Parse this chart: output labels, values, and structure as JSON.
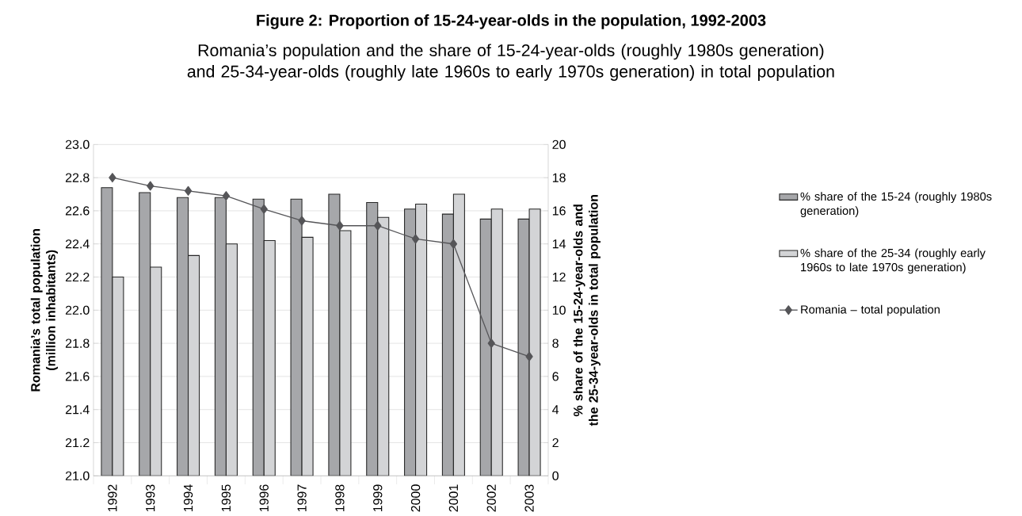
{
  "chart_data": {
    "type": "bar",
    "title": "Figure 2: Proportion of 15-24-year-olds in the population, 1992-2003",
    "subtitle": "Romania’s population and the share of 15-24-year-olds (roughly 1980s generation) and 25-34-year-olds (roughly late 1960s to early 1970s generation) in total population",
    "ylabel": "Romania’s total population (million inhabitants)",
    "y2label": "% share of the 15-24-year-olds and the 25-34-year-olds in total population",
    "categories": [
      "1992",
      "1993",
      "1994",
      "1995",
      "1996",
      "1997",
      "1998",
      "1999",
      "2000",
      "2001",
      "2002",
      "2003"
    ],
    "series": [
      {
        "name": "% share of the 15-24 (roughly 1980s generation)",
        "axis": "y2",
        "color": "#a6a7aa",
        "values": [
          17.4,
          17.1,
          16.8,
          16.8,
          16.7,
          16.7,
          17.0,
          16.5,
          16.1,
          15.8,
          15.5,
          15.5
        ]
      },
      {
        "name": "% share of the 25-34 (roughly early 1960s to late 1970s generation)",
        "axis": "y2",
        "color": "#d3d4d6",
        "values": [
          12.0,
          12.6,
          13.3,
          14.0,
          14.2,
          14.4,
          14.8,
          15.6,
          16.4,
          17.0,
          16.1,
          16.1
        ]
      },
      {
        "name": "Romania – total population",
        "type": "line",
        "axis": "y",
        "color": "#555558",
        "values": [
          22.8,
          22.75,
          22.72,
          22.69,
          22.61,
          22.54,
          22.51,
          22.51,
          22.43,
          22.4,
          21.8,
          21.72
        ]
      }
    ],
    "ylim": [
      21.0,
      23.0
    ],
    "yticks": [
      {
        "value": 21.0,
        "label": "21.0"
      },
      {
        "value": 21.2,
        "label": "21.2"
      },
      {
        "value": 21.4,
        "label": "21.4"
      },
      {
        "value": 21.6,
        "label": "21.6"
      },
      {
        "value": 21.8,
        "label": "21.8"
      },
      {
        "value": 22.0,
        "label": "22.0"
      },
      {
        "value": 22.2,
        "label": "22.2"
      },
      {
        "value": 22.4,
        "label": "22.4"
      },
      {
        "value": 22.6,
        "label": "22.6"
      },
      {
        "value": 22.8,
        "label": "22.8"
      },
      {
        "value": 23.0,
        "label": "23.0"
      }
    ],
    "y2lim": [
      0,
      20
    ],
    "y2ticks": [
      0,
      2,
      4,
      6,
      8,
      10,
      12,
      14,
      16,
      18,
      20
    ],
    "grid": "y",
    "legend": "right",
    "marker": "diamond"
  }
}
